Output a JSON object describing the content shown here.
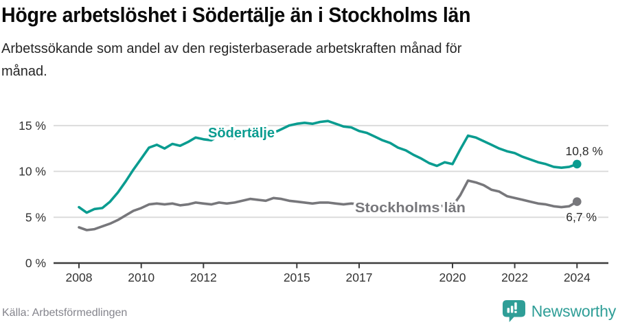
{
  "header": {
    "title": "Högre arbetslöshet i Södertälje än i Stockholms län",
    "subtitle_line1": "Arbetssökande som andel av den registerbaserade arbetskraften månad för",
    "subtitle_line2": "månad."
  },
  "chart_data": {
    "type": "line",
    "title": "Högre arbetslöshet i Södertälje än i Stockholms län",
    "xlabel": "",
    "ylabel": "",
    "grid": "horizontal",
    "legend_position": "inline-labels",
    "x_axis": {
      "unit": "year",
      "ticks": [
        2008,
        2010,
        2012,
        2015,
        2017,
        2020,
        2022,
        2024
      ],
      "lim": [
        2007.2,
        2025.0
      ]
    },
    "y_axis": {
      "ticks": [
        0,
        5,
        10,
        15
      ],
      "labels": [
        "0 %",
        "5 %",
        "10 %",
        "15 %"
      ],
      "lim": [
        0,
        16
      ]
    },
    "series": [
      {
        "name": "Södertälje",
        "color": "#0a9c90",
        "end_label": "10,8 %",
        "end_value": 10.8,
        "points": [
          [
            2008.0,
            6.1
          ],
          [
            2008.25,
            5.5
          ],
          [
            2008.5,
            5.9
          ],
          [
            2008.75,
            6.0
          ],
          [
            2009.0,
            6.7
          ],
          [
            2009.25,
            7.7
          ],
          [
            2009.5,
            8.9
          ],
          [
            2009.75,
            10.2
          ],
          [
            2010.0,
            11.4
          ],
          [
            2010.25,
            12.6
          ],
          [
            2010.5,
            12.9
          ],
          [
            2010.75,
            12.5
          ],
          [
            2011.0,
            13.0
          ],
          [
            2011.25,
            12.8
          ],
          [
            2011.5,
            13.2
          ],
          [
            2011.75,
            13.7
          ],
          [
            2012.0,
            13.5
          ],
          [
            2012.25,
            13.4
          ],
          [
            2012.5,
            13.9
          ],
          [
            2012.75,
            13.7
          ],
          [
            2013.0,
            13.6
          ],
          [
            2013.25,
            13.8
          ],
          [
            2013.5,
            13.9
          ],
          [
            2013.75,
            14.0
          ],
          [
            2014.0,
            13.9
          ],
          [
            2014.25,
            14.2
          ],
          [
            2014.5,
            14.6
          ],
          [
            2014.75,
            15.0
          ],
          [
            2015.0,
            15.2
          ],
          [
            2015.25,
            15.3
          ],
          [
            2015.5,
            15.2
          ],
          [
            2015.75,
            15.4
          ],
          [
            2016.0,
            15.5
          ],
          [
            2016.25,
            15.2
          ],
          [
            2016.5,
            14.9
          ],
          [
            2016.75,
            14.8
          ],
          [
            2017.0,
            14.4
          ],
          [
            2017.25,
            14.2
          ],
          [
            2017.5,
            13.8
          ],
          [
            2017.75,
            13.4
          ],
          [
            2018.0,
            13.1
          ],
          [
            2018.25,
            12.6
          ],
          [
            2018.5,
            12.3
          ],
          [
            2018.75,
            11.8
          ],
          [
            2019.0,
            11.4
          ],
          [
            2019.25,
            10.9
          ],
          [
            2019.5,
            10.6
          ],
          [
            2019.75,
            11.0
          ],
          [
            2020.0,
            10.8
          ],
          [
            2020.25,
            12.4
          ],
          [
            2020.5,
            13.9
          ],
          [
            2020.75,
            13.7
          ],
          [
            2021.0,
            13.3
          ],
          [
            2021.25,
            12.9
          ],
          [
            2021.5,
            12.5
          ],
          [
            2021.75,
            12.2
          ],
          [
            2022.0,
            12.0
          ],
          [
            2022.25,
            11.6
          ],
          [
            2022.5,
            11.3
          ],
          [
            2022.75,
            11.0
          ],
          [
            2023.0,
            10.8
          ],
          [
            2023.25,
            10.5
          ],
          [
            2023.5,
            10.4
          ],
          [
            2023.75,
            10.5
          ],
          [
            2024.0,
            10.8
          ]
        ]
      },
      {
        "name": "Stockholms län",
        "color": "#77777b",
        "end_label": "6,7 %",
        "end_value": 6.7,
        "points": [
          [
            2008.0,
            3.9
          ],
          [
            2008.25,
            3.6
          ],
          [
            2008.5,
            3.7
          ],
          [
            2008.75,
            4.0
          ],
          [
            2009.0,
            4.3
          ],
          [
            2009.25,
            4.7
          ],
          [
            2009.5,
            5.2
          ],
          [
            2009.75,
            5.7
          ],
          [
            2010.0,
            6.0
          ],
          [
            2010.25,
            6.4
          ],
          [
            2010.5,
            6.5
          ],
          [
            2010.75,
            6.4
          ],
          [
            2011.0,
            6.5
          ],
          [
            2011.25,
            6.3
          ],
          [
            2011.5,
            6.4
          ],
          [
            2011.75,
            6.6
          ],
          [
            2012.0,
            6.5
          ],
          [
            2012.25,
            6.4
          ],
          [
            2012.5,
            6.6
          ],
          [
            2012.75,
            6.5
          ],
          [
            2013.0,
            6.6
          ],
          [
            2013.25,
            6.8
          ],
          [
            2013.5,
            7.0
          ],
          [
            2013.75,
            6.9
          ],
          [
            2014.0,
            6.8
          ],
          [
            2014.25,
            7.1
          ],
          [
            2014.5,
            7.0
          ],
          [
            2014.75,
            6.8
          ],
          [
            2015.0,
            6.7
          ],
          [
            2015.25,
            6.6
          ],
          [
            2015.5,
            6.5
          ],
          [
            2015.75,
            6.6
          ],
          [
            2016.0,
            6.6
          ],
          [
            2016.25,
            6.5
          ],
          [
            2016.5,
            6.4
          ],
          [
            2016.75,
            6.5
          ],
          [
            2017.0,
            6.4
          ],
          [
            2017.25,
            6.3
          ],
          [
            2017.5,
            6.2
          ],
          [
            2017.75,
            6.3
          ],
          [
            2018.0,
            6.2
          ],
          [
            2018.25,
            6.1
          ],
          [
            2018.5,
            6.1
          ],
          [
            2018.75,
            6.2
          ],
          [
            2019.0,
            6.1
          ],
          [
            2019.25,
            6.0
          ],
          [
            2019.5,
            6.1
          ],
          [
            2019.75,
            6.3
          ],
          [
            2020.0,
            6.2
          ],
          [
            2020.25,
            7.4
          ],
          [
            2020.5,
            9.0
          ],
          [
            2020.75,
            8.8
          ],
          [
            2021.0,
            8.5
          ],
          [
            2021.25,
            8.0
          ],
          [
            2021.5,
            7.8
          ],
          [
            2021.75,
            7.3
          ],
          [
            2022.0,
            7.1
          ],
          [
            2022.25,
            6.9
          ],
          [
            2022.5,
            6.7
          ],
          [
            2022.75,
            6.5
          ],
          [
            2023.0,
            6.4
          ],
          [
            2023.25,
            6.2
          ],
          [
            2023.5,
            6.1
          ],
          [
            2023.75,
            6.2
          ],
          [
            2024.0,
            6.7
          ]
        ]
      }
    ]
  },
  "footer": {
    "source": "Källa: Arbetsförmedlingen",
    "brand": "Newsworthy"
  },
  "colors": {
    "accent_teal": "#0a9c90",
    "gray_series": "#77777b",
    "brand_teal": "#2f9e97",
    "grid": "#d9d9d9",
    "axis": "#3c3c3c",
    "tick_label": "#333333",
    "value_label": "#2b2b2b"
  }
}
